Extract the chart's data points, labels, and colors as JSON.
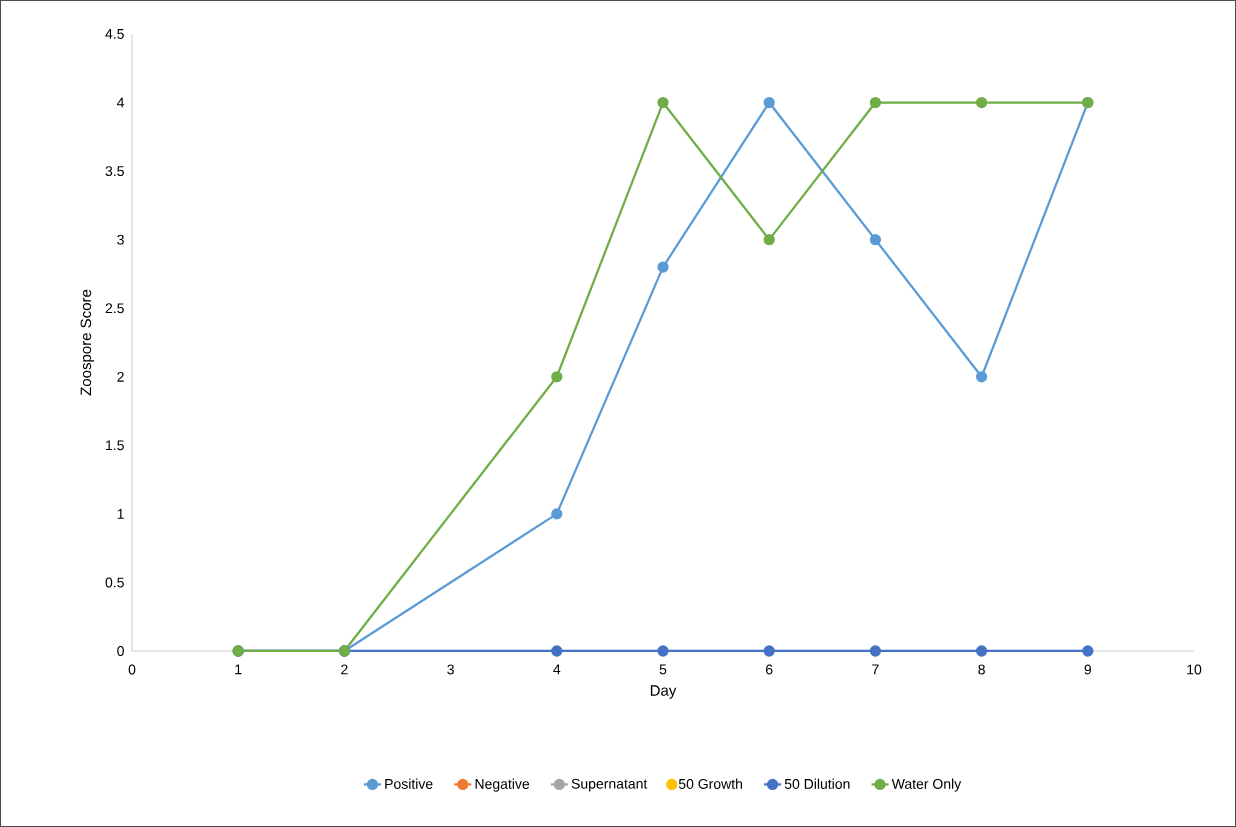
{
  "chart_data": {
    "type": "line",
    "xlabel": "Day",
    "ylabel": "Zoospore Score",
    "x": [
      1,
      2,
      4,
      5,
      6,
      7,
      8,
      9
    ],
    "xlim": [
      0,
      10
    ],
    "xticks": [
      0,
      1,
      2,
      3,
      4,
      5,
      6,
      7,
      8,
      9,
      10
    ],
    "ylim": [
      0,
      4.5
    ],
    "yticks": [
      0,
      0.5,
      1,
      1.5,
      2,
      2.5,
      3,
      3.5,
      4,
      4.5
    ],
    "marker": "circle",
    "legend": "bottom",
    "line_style": "solid",
    "series": [
      {
        "name": "Positive",
        "color": "#5b9bd5",
        "values": [
          0,
          0,
          1,
          2.8,
          4,
          3,
          2,
          4
        ]
      },
      {
        "name": "Negative",
        "color": "#ed7d31",
        "values": [
          null,
          null,
          null,
          null,
          null,
          null,
          null,
          null
        ]
      },
      {
        "name": "Supernatant",
        "color": "#a5a5a5",
        "values": [
          null,
          null,
          null,
          null,
          null,
          null,
          null,
          null
        ]
      },
      {
        "name": "50 Growth",
        "type": "scatter",
        "color": "#ffc000",
        "values": [
          null,
          null,
          null,
          null,
          null,
          null,
          null,
          null
        ]
      },
      {
        "name": "50 Dilution",
        "color": "#4472c4",
        "values": [
          0,
          0,
          0,
          0,
          0,
          0,
          0,
          0
        ]
      },
      {
        "name": "Water Only",
        "color": "#70ad47",
        "values": [
          0,
          0,
          2,
          4,
          3,
          4,
          4,
          4
        ]
      }
    ]
  }
}
